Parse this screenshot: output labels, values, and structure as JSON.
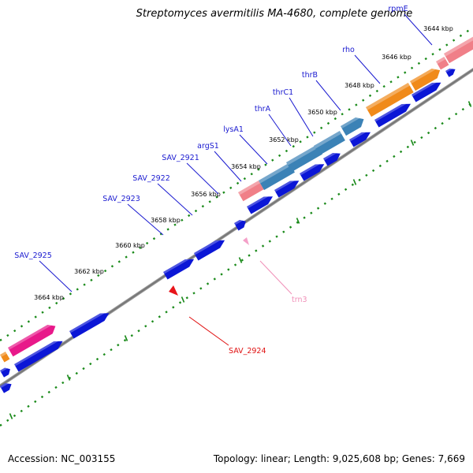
{
  "title": "Streptomyces avermitilis MA-4680, complete genome",
  "footer": {
    "accession": "Accession: NC_003155",
    "summary": "Topology: linear; Length: 9,025,608 bp; Genes: 7,669"
  },
  "colors": {
    "cds_forward": "#0b16d6",
    "cds_reverse": "#e8141a",
    "trna": "#f4a0c8",
    "rrna": "#e8188a",
    "salmon": "#f07f88",
    "steel": "#3b82b6",
    "orange": "#f08a1a",
    "axis": "#777777",
    "ticks": "#1a8a1a",
    "labels_blue": "#1a1ad0",
    "labels_red": "#e01010",
    "labels_pink": "#f090b8"
  },
  "ticks": [
    "3644 kbp",
    "3646 kbp",
    "3648 kbp",
    "3650 kbp",
    "3652 kbp",
    "3654 kbp",
    "3656 kbp",
    "3658 kbp",
    "3660 kbp",
    "3662 kbp",
    "3664 kbp"
  ],
  "genes": [
    {
      "name": "rpmE",
      "color": "labels_blue"
    },
    {
      "name": "rho",
      "color": "labels_blue"
    },
    {
      "name": "thrB",
      "color": "labels_blue"
    },
    {
      "name": "thrC1",
      "color": "labels_blue"
    },
    {
      "name": "thrA",
      "color": "labels_blue"
    },
    {
      "name": "lysA1",
      "color": "labels_blue"
    },
    {
      "name": "argS1",
      "color": "labels_blue"
    },
    {
      "name": "SAV_2921",
      "color": "labels_blue"
    },
    {
      "name": "SAV_2922",
      "color": "labels_blue"
    },
    {
      "name": "SAV_2923",
      "color": "labels_blue"
    },
    {
      "name": "SAV_2925",
      "color": "labels_blue"
    },
    {
      "name": "trn3",
      "color": "labels_pink"
    },
    {
      "name": "SAV_2924",
      "color": "labels_red"
    }
  ]
}
